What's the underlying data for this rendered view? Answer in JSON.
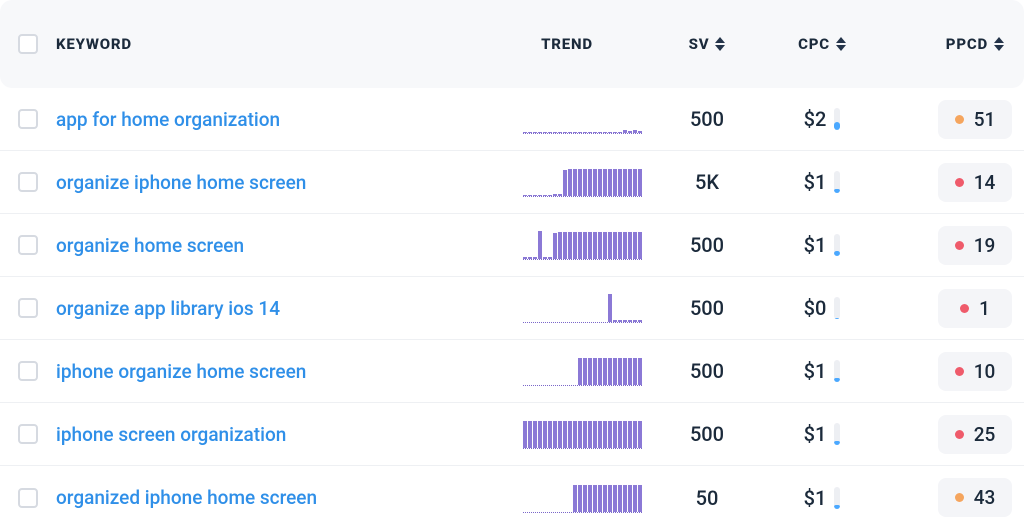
{
  "styling": {
    "header_bg": "#f7f8fa",
    "row_border": "#eef0f3",
    "checkbox_border": "#d6dae1",
    "link_color": "#2f8fe8",
    "text_color": "#1b2a3b",
    "trend_bar_color": "#8b79d6",
    "trend_baseline_color": "#7a67c9",
    "cpc_track_color": "#edeff3",
    "cpc_fill_color": "#4aa8ff",
    "badge_bg": "#f4f5f8",
    "dot_orange": "#f5a55e",
    "dot_red": "#ef5b6b",
    "arrow_active": "#24344a",
    "arrow_inactive": "#b8c1cf",
    "header_font_size": 15,
    "body_font_size": 19,
    "trend_bar_width": 4,
    "trend_bar_gap": 1,
    "trend_height": 30,
    "trend_bar_count": 24
  },
  "columns": {
    "keyword": "KEYWORD",
    "trend": "TREND",
    "sv": "SV",
    "cpc": "CPC",
    "ppcd": "PPCD"
  },
  "rows": [
    {
      "keyword": "app for home organization",
      "trend_heights": [
        1,
        1,
        1,
        1,
        1,
        1,
        1,
        1,
        1,
        1,
        1,
        1,
        1,
        1,
        1,
        1,
        1,
        1,
        1,
        1,
        3,
        2,
        3,
        2
      ],
      "sv": "500",
      "cpc_display": "$2",
      "cpc_fill_pct": 35,
      "ppcd_value": "51",
      "ppcd_dot_color": "#f5a55e"
    },
    {
      "keyword": "organize iphone home screen",
      "trend_heights": [
        1,
        1,
        1,
        1,
        1,
        1,
        2,
        2,
        26,
        27,
        27,
        27,
        27,
        27,
        27,
        27,
        27,
        27,
        27,
        27,
        27,
        27,
        27,
        27
      ],
      "sv": "5K",
      "cpc_display": "$1",
      "cpc_fill_pct": 20,
      "ppcd_value": "14",
      "ppcd_dot_color": "#ef5b6b"
    },
    {
      "keyword": "organize home screen",
      "trend_heights": [
        2,
        2,
        2,
        28,
        2,
        2,
        26,
        27,
        27,
        27,
        27,
        27,
        27,
        27,
        27,
        27,
        27,
        27,
        27,
        27,
        27,
        27,
        27,
        27
      ],
      "sv": "500",
      "cpc_display": "$1",
      "cpc_fill_pct": 22,
      "ppcd_value": "19",
      "ppcd_dot_color": "#ef5b6b"
    },
    {
      "keyword": "organize app library ios 14",
      "trend_heights": [
        0,
        0,
        0,
        0,
        0,
        0,
        0,
        0,
        0,
        0,
        0,
        0,
        0,
        0,
        0,
        0,
        0,
        28,
        2,
        2,
        2,
        2,
        2,
        2
      ],
      "sv": "500",
      "cpc_display": "$0",
      "cpc_fill_pct": 5,
      "ppcd_value": "1",
      "ppcd_dot_color": "#ef5b6b"
    },
    {
      "keyword": "iphone organize home screen",
      "trend_heights": [
        0,
        0,
        0,
        0,
        0,
        0,
        0,
        0,
        0,
        0,
        0,
        27,
        27,
        27,
        27,
        27,
        27,
        27,
        27,
        27,
        27,
        27,
        27,
        27
      ],
      "sv": "500",
      "cpc_display": "$1",
      "cpc_fill_pct": 20,
      "ppcd_value": "10",
      "ppcd_dot_color": "#ef5b6b"
    },
    {
      "keyword": "iphone screen organization",
      "trend_heights": [
        27,
        27,
        27,
        27,
        27,
        27,
        27,
        27,
        27,
        27,
        27,
        27,
        27,
        27,
        27,
        27,
        27,
        27,
        27,
        27,
        27,
        27,
        27,
        27
      ],
      "sv": "500",
      "cpc_display": "$1",
      "cpc_fill_pct": 18,
      "ppcd_value": "25",
      "ppcd_dot_color": "#ef5b6b"
    },
    {
      "keyword": "organized iphone home screen",
      "trend_heights": [
        0,
        0,
        0,
        0,
        0,
        0,
        0,
        0,
        0,
        0,
        27,
        27,
        27,
        27,
        27,
        27,
        27,
        27,
        27,
        27,
        27,
        27,
        27,
        27
      ],
      "sv": "50",
      "cpc_display": "$1",
      "cpc_fill_pct": 15,
      "ppcd_value": "43",
      "ppcd_dot_color": "#f5a55e"
    }
  ]
}
